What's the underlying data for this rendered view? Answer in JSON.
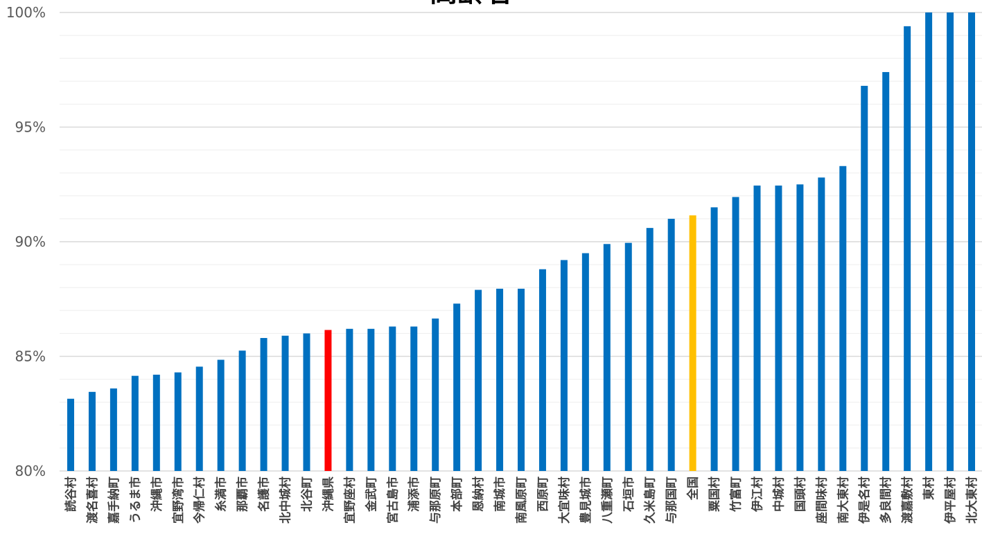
{
  "chart_data": {
    "type": "bar",
    "title": "高齢者",
    "ylim": [
      80,
      100
    ],
    "y_ticks": [
      "80%",
      "85%",
      "90%",
      "95%",
      "100%"
    ],
    "y_tick_values": [
      80,
      85,
      90,
      95,
      100
    ],
    "grid": true,
    "categories": [
      "読谷村",
      "渡名喜村",
      "嘉手納町",
      "うるま市",
      "沖縄市",
      "宜野湾市",
      "今帰仁村",
      "糸満市",
      "那覇市",
      "名護市",
      "北中城村",
      "北谷町",
      "沖縄県",
      "宜野座村",
      "金武町",
      "宮古島市",
      "浦添市",
      "与那原町",
      "本部町",
      "恩納村",
      "南城市",
      "南風原町",
      "西原町",
      "大宜味村",
      "豊見城市",
      "八重瀬町",
      "石垣市",
      "久米島町",
      "与那国町",
      "全国",
      "粟国村",
      "竹富町",
      "伊江村",
      "中城村",
      "国頭村",
      "座間味村",
      "南大東村",
      "伊是名村",
      "多良間村",
      "渡嘉敷村",
      "東村",
      "伊平屋村",
      "北大東村"
    ],
    "values": [
      83.15,
      83.45,
      83.6,
      84.15,
      84.2,
      84.3,
      84.55,
      84.85,
      85.25,
      85.8,
      85.9,
      86.0,
      86.15,
      86.2,
      86.2,
      86.3,
      86.3,
      86.65,
      87.3,
      87.9,
      87.95,
      87.95,
      88.8,
      89.2,
      89.5,
      89.9,
      89.95,
      90.6,
      91.0,
      91.15,
      91.5,
      91.95,
      92.45,
      92.45,
      92.5,
      92.8,
      93.3,
      96.8,
      97.4,
      99.4,
      100.0,
      100.0,
      100.0
    ],
    "colors": {
      "default": "#0070c0",
      "prefecture": "#ff0000",
      "national": "#ffc000",
      "grid_major": "#d9d9d9",
      "grid_minor": "#eeeeee"
    },
    "highlights": {
      "沖縄県": "prefecture",
      "全国": "national"
    }
  }
}
